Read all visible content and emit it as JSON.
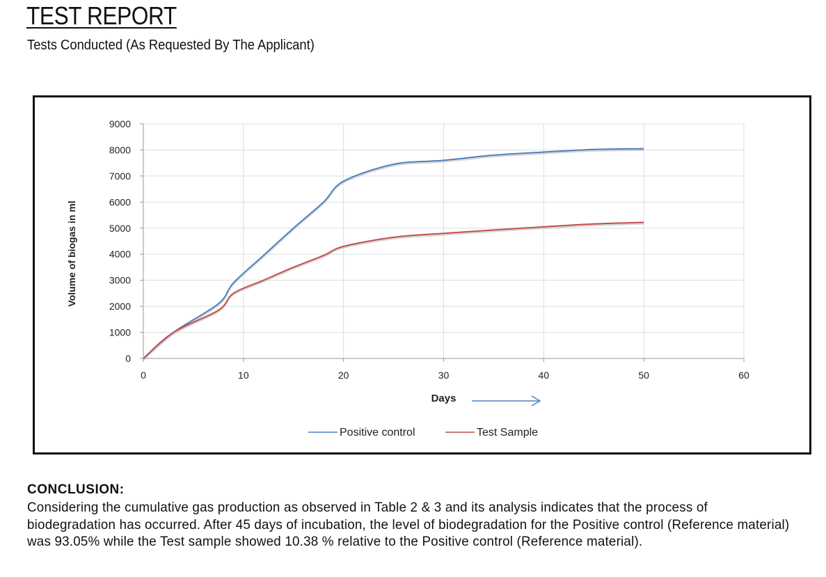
{
  "header": {
    "title": "TEST REPORT",
    "subtitle": "Tests Conducted (As Requested By The Applicant)"
  },
  "chart_data": {
    "type": "line",
    "xlabel": "Days",
    "ylabel": "Volume of biogas in ml",
    "xlim": [
      0,
      60
    ],
    "ylim": [
      0,
      9000
    ],
    "xticks": [
      0,
      10,
      20,
      30,
      40,
      50,
      60
    ],
    "yticks": [
      0,
      1000,
      2000,
      3000,
      4000,
      5000,
      6000,
      7000,
      8000,
      9000
    ],
    "grid": true,
    "legend_position": "bottom",
    "series": [
      {
        "name": "Positive control",
        "color": "#4f81bd",
        "x": [
          0,
          3,
          7.5,
          9,
          12,
          15,
          18,
          20,
          25,
          30,
          35,
          40,
          45,
          50
        ],
        "y": [
          0,
          1000,
          2100,
          2900,
          3950,
          5000,
          6000,
          6800,
          7450,
          7600,
          7800,
          7920,
          8020,
          8050
        ]
      },
      {
        "name": "Test Sample",
        "color": "#c0504d",
        "x": [
          0,
          3,
          7.5,
          9,
          12,
          15,
          18,
          20,
          25,
          30,
          35,
          40,
          45,
          50
        ],
        "y": [
          0,
          1000,
          1850,
          2500,
          3000,
          3500,
          3950,
          4300,
          4650,
          4800,
          4930,
          5050,
          5160,
          5220
        ]
      }
    ],
    "arrow_annotation": "→"
  },
  "conclusion": {
    "heading": "CONCLUSION:",
    "text": "Considering the cumulative gas production as observed in Table 2 & 3 and its analysis indicates that the process of biodegradation has occurred. After 45 days of incubation, the level of biodegradation for the Positive control (Reference material) was 93.05% while the Test sample showed 10.38 % relative to the Positive control (Reference material)."
  }
}
